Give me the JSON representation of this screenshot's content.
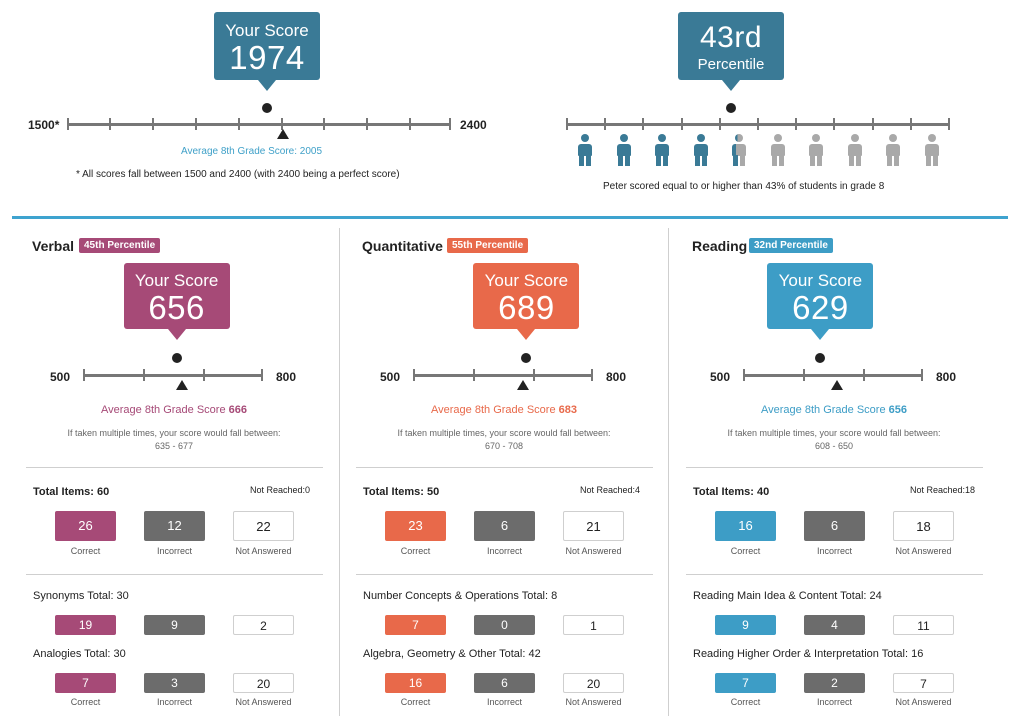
{
  "colors": {
    "total_blue": "#3a7a96",
    "verbal": "#a64a77",
    "quant": "#e8694a",
    "reading": "#3d9dc6",
    "accent_line": "#3ea3cf",
    "person_filled": "#3a7a96",
    "person_empty": "#a9a9a9"
  },
  "overall": {
    "score_label": "Your Score",
    "score": "1974",
    "scale_min": "1500*",
    "scale_max": "2400",
    "avg_label": "Average 8th Grade Score: 2005",
    "footnote": "* All scores fall between 1500 and 2400 (with 2400 being a perfect score)"
  },
  "percentile": {
    "value": "43rd",
    "label": "Percentile",
    "caption": "Peter scored equal to or higher than 43% of students in grade 8",
    "filled_fraction": 0.43
  },
  "sections": [
    {
      "title": "Verbal",
      "badge": "45th Percentile",
      "score_label": "Your Score",
      "score": "656",
      "scale_min": "500",
      "scale_max": "800",
      "avg_prefix": "Average 8th Grade Score",
      "avg_value": "666",
      "note_line1": "If taken multiple times, your score would fall between:",
      "note_line2": "635 - 677",
      "total_items": "Total Items: 60",
      "not_reached": "Not Reached:0",
      "correct": "26",
      "incorrect": "12",
      "not_answered": "22",
      "cap_correct": "Correct",
      "cap_incorrect": "Incorrect",
      "cap_na": "Not Answered",
      "sub1_label": "Synonyms Total: 30",
      "sub1": [
        "19",
        "9",
        "2"
      ],
      "sub2_label": "Analogies Total: 30",
      "sub2": [
        "7",
        "3",
        "20"
      ]
    },
    {
      "title": "Quantitative",
      "badge": "55th Percentile",
      "score_label": "Your Score",
      "score": "689",
      "scale_min": "500",
      "scale_max": "800",
      "avg_prefix": "Average 8th Grade Score",
      "avg_value": "683",
      "note_line1": "If taken multiple times, your score would fall between:",
      "note_line2": "670 - 708",
      "total_items": "Total Items: 50",
      "not_reached": "Not Reached:4",
      "correct": "23",
      "incorrect": "6",
      "not_answered": "21",
      "cap_correct": "Correct",
      "cap_incorrect": "Incorrect",
      "cap_na": "Not Answered",
      "sub1_label": "Number Concepts & Operations Total: 8",
      "sub1": [
        "7",
        "0",
        "1"
      ],
      "sub2_label": "Algebra, Geometry & Other Total: 42",
      "sub2": [
        "16",
        "6",
        "20"
      ]
    },
    {
      "title": "Reading",
      "badge": "32nd Percentile",
      "score_label": "Your Score",
      "score": "629",
      "scale_min": "500",
      "scale_max": "800",
      "avg_prefix": "Average 8th Grade Score",
      "avg_value": "656",
      "note_line1": "If taken multiple times, your score would fall between:",
      "note_line2": "608 - 650",
      "total_items": "Total Items: 40",
      "not_reached": "Not Reached:18",
      "correct": "16",
      "incorrect": "6",
      "not_answered": "18",
      "cap_correct": "Correct",
      "cap_incorrect": "Incorrect",
      "cap_na": "Not Answered",
      "sub1_label": "Reading Main Idea & Content Total: 24",
      "sub1": [
        "9",
        "4",
        "11"
      ],
      "sub2_label": "Reading Higher Order & Interpretation Total: 16",
      "sub2": [
        "7",
        "2",
        "7"
      ]
    }
  ]
}
